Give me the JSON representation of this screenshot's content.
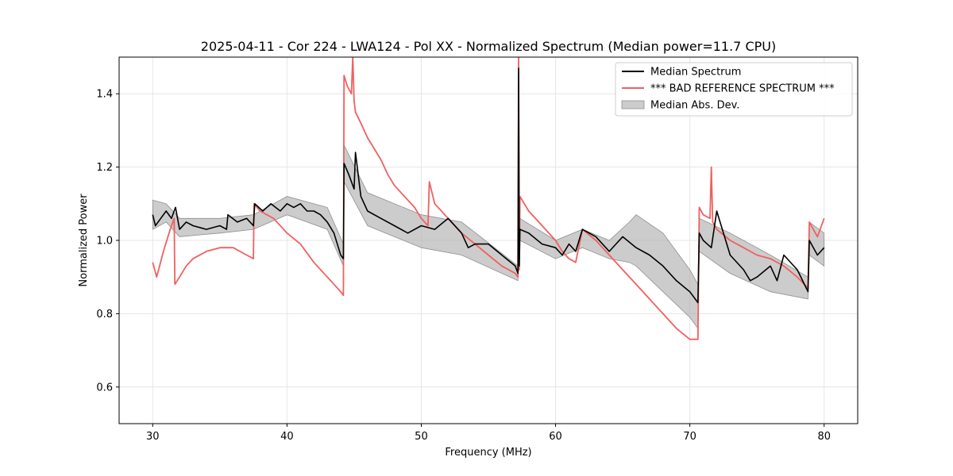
{
  "chart_data": {
    "type": "line",
    "title": "2025-04-11 - Cor 224 - LWA124 - Pol XX - Normalized Spectrum (Median power=11.7 CPU)",
    "xlabel": "Frequency (MHz)",
    "ylabel": "Normalized Power",
    "xlim": [
      27.5,
      82.5
    ],
    "ylim": [
      0.5,
      1.5
    ],
    "xticks": [
      30,
      40,
      50,
      60,
      70,
      80
    ],
    "yticks": [
      0.6,
      0.8,
      1.0,
      1.2,
      1.4
    ],
    "grid": true,
    "legend_position": "top-right",
    "legend": [
      {
        "label": "Median Spectrum",
        "kind": "line",
        "color": "#000000"
      },
      {
        "label": "*** BAD REFERENCE SPECTRUM ***",
        "kind": "line",
        "color": "#f06060"
      },
      {
        "label": "Median Abs. Dev.",
        "kind": "band",
        "color": "#b0b0b0"
      }
    ],
    "series": [
      {
        "name": "Median Spectrum",
        "color": "#000000",
        "x": [
          30.0,
          30.2,
          30.6,
          31.0,
          31.4,
          31.7,
          32.0,
          32.5,
          33.0,
          34.0,
          35.0,
          35.5,
          35.6,
          36.3,
          37.0,
          37.5,
          37.6,
          38.2,
          38.8,
          39.5,
          40.0,
          40.5,
          41.0,
          41.5,
          42.0,
          42.5,
          43.0,
          43.5,
          44.0,
          44.2,
          44.25,
          44.6,
          45.0,
          45.1,
          45.5,
          46.0,
          47.0,
          48.0,
          49.0,
          50.0,
          51.0,
          52.0,
          53.0,
          53.5,
          54.0,
          55.0,
          56.0,
          57.0,
          57.2,
          57.25,
          57.3,
          57.35,
          58.0,
          59.0,
          60.0,
          60.5,
          61.0,
          61.5,
          62.0,
          63.0,
          64.0,
          64.5,
          65.0,
          66.0,
          67.0,
          68.0,
          69.0,
          70.0,
          70.6,
          70.7,
          71.0,
          71.6,
          72.0,
          73.0,
          74.0,
          74.5,
          75.0,
          76.0,
          76.5,
          77.0,
          78.0,
          78.8,
          78.9,
          79.5,
          80.0
        ],
        "values": [
          1.07,
          1.04,
          1.06,
          1.08,
          1.06,
          1.09,
          1.03,
          1.05,
          1.04,
          1.03,
          1.04,
          1.03,
          1.07,
          1.05,
          1.06,
          1.04,
          1.1,
          1.08,
          1.1,
          1.08,
          1.1,
          1.09,
          1.1,
          1.08,
          1.08,
          1.07,
          1.05,
          1.02,
          0.96,
          0.95,
          1.21,
          1.18,
          1.14,
          1.24,
          1.12,
          1.08,
          1.06,
          1.04,
          1.02,
          1.04,
          1.03,
          1.06,
          1.02,
          0.98,
          0.99,
          0.99,
          0.96,
          0.93,
          0.91,
          1.47,
          0.93,
          1.03,
          1.02,
          0.99,
          0.98,
          0.96,
          0.99,
          0.97,
          1.03,
          1.01,
          0.97,
          0.99,
          1.01,
          0.98,
          0.96,
          0.93,
          0.89,
          0.86,
          0.83,
          1.02,
          1.0,
          0.98,
          1.08,
          0.96,
          0.92,
          0.89,
          0.9,
          0.93,
          0.89,
          0.96,
          0.92,
          0.86,
          1.0,
          0.96,
          0.98
        ]
      },
      {
        "name": "*** BAD REFERENCE SPECTRUM ***",
        "color": "#f06060",
        "x": [
          30.0,
          30.3,
          30.8,
          31.3,
          31.6,
          31.65,
          32.0,
          32.5,
          33.0,
          34.0,
          35.0,
          36.0,
          37.0,
          37.5,
          37.55,
          38.0,
          39.0,
          40.0,
          41.0,
          42.0,
          43.0,
          44.0,
          44.2,
          44.25,
          44.5,
          44.8,
          44.9,
          45.0,
          45.1,
          45.5,
          46.0,
          47.0,
          47.5,
          48.0,
          49.0,
          49.5,
          50.0,
          50.5,
          50.6,
          51.0,
          52.0,
          53.0,
          54.0,
          55.0,
          56.0,
          57.0,
          57.2,
          57.25,
          57.3,
          57.35,
          58.0,
          59.0,
          60.0,
          60.5,
          61.0,
          61.5,
          62.0,
          63.0,
          64.0,
          65.0,
          66.0,
          67.0,
          68.0,
          69.0,
          70.0,
          70.6,
          70.7,
          71.0,
          71.5,
          71.6,
          71.7,
          72.0,
          73.0,
          74.0,
          75.0,
          76.0,
          77.0,
          78.0,
          78.8,
          78.9,
          79.5,
          80.0
        ],
        "values": [
          0.94,
          0.9,
          0.97,
          1.03,
          1.06,
          0.88,
          0.9,
          0.93,
          0.95,
          0.97,
          0.98,
          0.98,
          0.96,
          0.95,
          1.1,
          1.08,
          1.06,
          1.02,
          0.99,
          0.94,
          0.9,
          0.86,
          0.85,
          1.45,
          1.42,
          1.4,
          1.5,
          1.38,
          1.35,
          1.32,
          1.28,
          1.22,
          1.18,
          1.15,
          1.11,
          1.09,
          1.06,
          1.04,
          1.16,
          1.1,
          1.06,
          1.02,
          0.99,
          0.96,
          0.93,
          0.91,
          0.9,
          1.5,
          0.92,
          1.12,
          1.08,
          1.04,
          1.0,
          0.97,
          0.95,
          0.94,
          1.03,
          1.0,
          0.96,
          0.92,
          0.88,
          0.84,
          0.8,
          0.76,
          0.73,
          0.73,
          1.09,
          1.07,
          1.06,
          1.2,
          1.05,
          1.03,
          1.0,
          0.98,
          0.96,
          0.95,
          0.93,
          0.9,
          0.87,
          1.05,
          1.01,
          1.06
        ]
      }
    ],
    "band": {
      "name": "Median Abs. Dev.",
      "color": "#b0b0b0",
      "x": [
        30.0,
        31.0,
        32.0,
        35.0,
        37.5,
        40.0,
        43.0,
        44.2,
        44.25,
        46.0,
        50.0,
        53.0,
        57.2,
        57.35,
        60.0,
        62.0,
        64.0,
        65.5,
        66.0,
        68.0,
        70.0,
        70.6,
        70.7,
        73.0,
        76.0,
        78.8,
        78.9,
        80.0
      ],
      "lower": [
        1.03,
        1.05,
        1.01,
        1.02,
        1.03,
        1.07,
        1.03,
        0.93,
        1.16,
        1.04,
        0.98,
        0.96,
        0.89,
        1.0,
        0.95,
        0.98,
        0.95,
        0.94,
        0.93,
        0.86,
        0.79,
        0.76,
        0.97,
        0.91,
        0.86,
        0.84,
        0.96,
        0.93
      ],
      "upper": [
        1.11,
        1.1,
        1.06,
        1.06,
        1.07,
        1.12,
        1.09,
        0.99,
        1.26,
        1.13,
        1.07,
        1.05,
        0.93,
        1.06,
        1.0,
        1.03,
        1.0,
        1.05,
        1.07,
        1.02,
        0.92,
        0.88,
        1.06,
        1.02,
        0.96,
        0.9,
        1.05,
        1.02
      ]
    }
  }
}
